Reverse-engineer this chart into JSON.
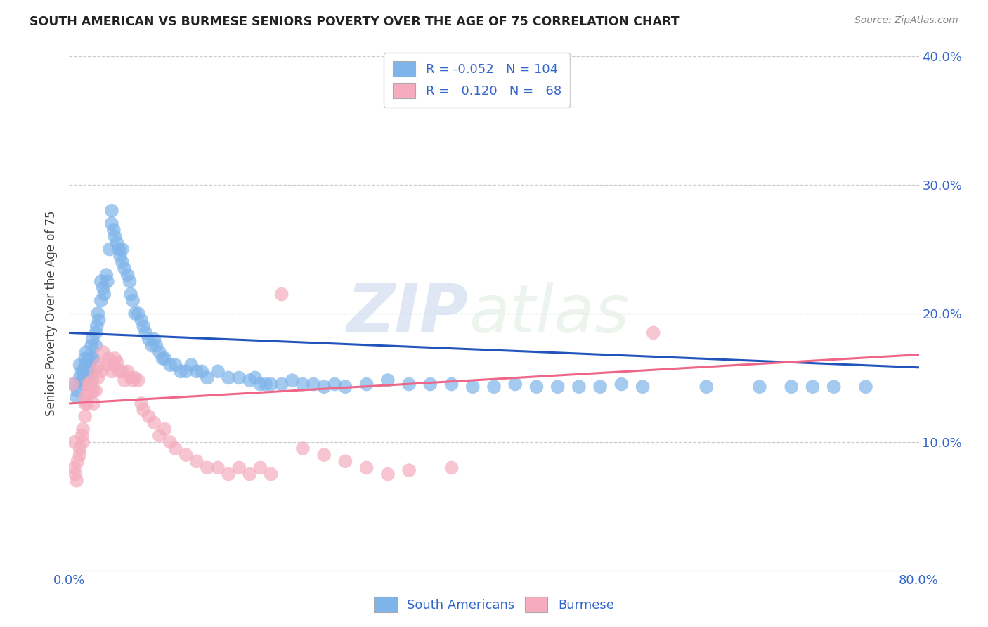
{
  "title": "SOUTH AMERICAN VS BURMESE SENIORS POVERTY OVER THE AGE OF 75 CORRELATION CHART",
  "source": "Source: ZipAtlas.com",
  "ylabel": "Seniors Poverty Over the Age of 75",
  "xlim": [
    0.0,
    0.8
  ],
  "ylim": [
    0.0,
    0.4
  ],
  "blue_color": "#7EB4EA",
  "pink_color": "#F4ACBE",
  "line_blue": "#2255BB",
  "line_pink": "#EE6688",
  "watermark_zip": "ZIP",
  "watermark_atlas": "atlas",
  "legend_R_blue": "-0.052",
  "legend_N_blue": "104",
  "legend_R_pink": "0.120",
  "legend_N_pink": "68",
  "sa_x": [
    0.005,
    0.007,
    0.008,
    0.01,
    0.01,
    0.012,
    0.012,
    0.013,
    0.014,
    0.015,
    0.015,
    0.015,
    0.016,
    0.018,
    0.018,
    0.019,
    0.02,
    0.02,
    0.02,
    0.021,
    0.022,
    0.022,
    0.023,
    0.025,
    0.025,
    0.026,
    0.027,
    0.028,
    0.03,
    0.03,
    0.032,
    0.033,
    0.035,
    0.036,
    0.038,
    0.04,
    0.04,
    0.042,
    0.043,
    0.045,
    0.047,
    0.048,
    0.05,
    0.05,
    0.052,
    0.055,
    0.057,
    0.058,
    0.06,
    0.062,
    0.065,
    0.068,
    0.07,
    0.072,
    0.075,
    0.078,
    0.08,
    0.082,
    0.085,
    0.088,
    0.09,
    0.095,
    0.1,
    0.105,
    0.11,
    0.115,
    0.12,
    0.125,
    0.13,
    0.14,
    0.15,
    0.16,
    0.17,
    0.175,
    0.18,
    0.185,
    0.19,
    0.2,
    0.21,
    0.22,
    0.23,
    0.24,
    0.25,
    0.26,
    0.28,
    0.3,
    0.32,
    0.34,
    0.36,
    0.38,
    0.4,
    0.42,
    0.44,
    0.46,
    0.48,
    0.5,
    0.52,
    0.54,
    0.6,
    0.65,
    0.68,
    0.7,
    0.72,
    0.75
  ],
  "sa_y": [
    0.145,
    0.135,
    0.14,
    0.15,
    0.16,
    0.148,
    0.155,
    0.145,
    0.155,
    0.165,
    0.15,
    0.16,
    0.17,
    0.155,
    0.165,
    0.16,
    0.145,
    0.15,
    0.155,
    0.175,
    0.165,
    0.18,
    0.165,
    0.185,
    0.175,
    0.19,
    0.2,
    0.195,
    0.21,
    0.225,
    0.22,
    0.215,
    0.23,
    0.225,
    0.25,
    0.27,
    0.28,
    0.265,
    0.26,
    0.255,
    0.25,
    0.245,
    0.24,
    0.25,
    0.235,
    0.23,
    0.225,
    0.215,
    0.21,
    0.2,
    0.2,
    0.195,
    0.19,
    0.185,
    0.18,
    0.175,
    0.18,
    0.175,
    0.17,
    0.165,
    0.165,
    0.16,
    0.16,
    0.155,
    0.155,
    0.16,
    0.155,
    0.155,
    0.15,
    0.155,
    0.15,
    0.15,
    0.148,
    0.15,
    0.145,
    0.145,
    0.145,
    0.145,
    0.148,
    0.145,
    0.145,
    0.143,
    0.145,
    0.143,
    0.145,
    0.148,
    0.145,
    0.145,
    0.145,
    0.143,
    0.143,
    0.145,
    0.143,
    0.143,
    0.143,
    0.143,
    0.145,
    0.143,
    0.143,
    0.143,
    0.143,
    0.143,
    0.143,
    0.143
  ],
  "bu_x": [
    0.003,
    0.005,
    0.005,
    0.006,
    0.007,
    0.008,
    0.01,
    0.01,
    0.012,
    0.013,
    0.013,
    0.015,
    0.015,
    0.015,
    0.017,
    0.018,
    0.018,
    0.02,
    0.02,
    0.022,
    0.023,
    0.023,
    0.025,
    0.025,
    0.027,
    0.028,
    0.03,
    0.032,
    0.035,
    0.037,
    0.04,
    0.042,
    0.043,
    0.045,
    0.047,
    0.05,
    0.052,
    0.055,
    0.058,
    0.06,
    0.062,
    0.065,
    0.068,
    0.07,
    0.075,
    0.08,
    0.085,
    0.09,
    0.095,
    0.1,
    0.11,
    0.12,
    0.13,
    0.14,
    0.15,
    0.16,
    0.17,
    0.18,
    0.19,
    0.2,
    0.22,
    0.24,
    0.26,
    0.28,
    0.3,
    0.32,
    0.36,
    0.55
  ],
  "bu_y": [
    0.145,
    0.1,
    0.08,
    0.075,
    0.07,
    0.085,
    0.09,
    0.095,
    0.105,
    0.1,
    0.11,
    0.13,
    0.12,
    0.135,
    0.13,
    0.14,
    0.145,
    0.138,
    0.145,
    0.148,
    0.13,
    0.14,
    0.14,
    0.155,
    0.15,
    0.16,
    0.155,
    0.17,
    0.16,
    0.165,
    0.155,
    0.16,
    0.165,
    0.162,
    0.155,
    0.155,
    0.148,
    0.155,
    0.15,
    0.148,
    0.15,
    0.148,
    0.13,
    0.125,
    0.12,
    0.115,
    0.105,
    0.11,
    0.1,
    0.095,
    0.09,
    0.085,
    0.08,
    0.08,
    0.075,
    0.08,
    0.075,
    0.08,
    0.075,
    0.215,
    0.095,
    0.09,
    0.085,
    0.08,
    0.075,
    0.078,
    0.08,
    0.185
  ]
}
